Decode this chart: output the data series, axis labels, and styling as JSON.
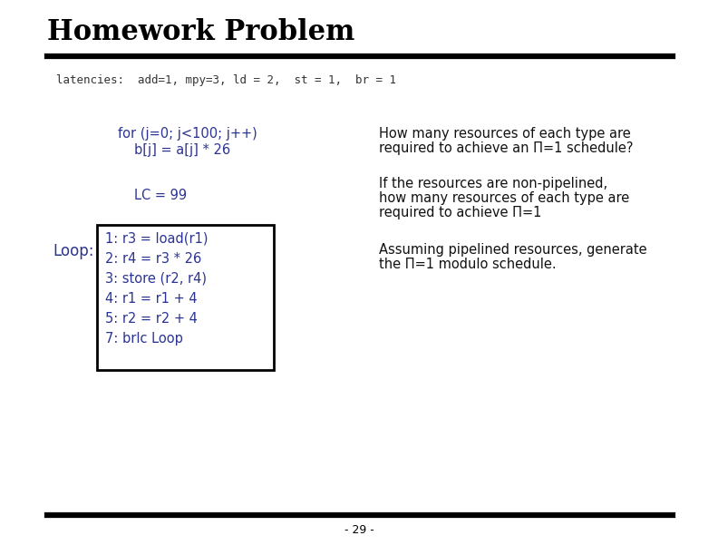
{
  "title": "Homework Problem",
  "latencies_line": "latencies:  add=1, mpy=3, ld = 2,  st = 1,  br = 1",
  "for_loop_line1": "for (j=0; j<100; j++)",
  "for_loop_line2": "b[j] = a[j] * 26",
  "lc_line": "LC = 99",
  "loop_label": "Loop:",
  "loop_code": [
    "1: r3 = load(r1)",
    "2: r4 = r3 * 26",
    "3: store (r2, r4)",
    "4: r1 = r1 + 4",
    "5: r2 = r2 + 4",
    "7: brlc Loop"
  ],
  "question1_line1": "How many resources of each type are",
  "question1_line2": "required to achieve an Π=1 schedule?",
  "question2_line1": "If the resources are non-pipelined,",
  "question2_line2": "how many resources of each type are",
  "question2_line3": "required to achieve Π=1",
  "question3_line1": "Assuming pipelined resources, generate",
  "question3_line2": "the Π=1 modulo schedule.",
  "page_number": "- 29 -",
  "title_color": "#000000",
  "blue_color": "#2b3490",
  "latencies_color": "#333333",
  "question_color": "#111111",
  "background_color": "#ffffff",
  "title_fontsize": 22,
  "latencies_fontsize": 9,
  "code_fontsize": 10.5,
  "question_fontsize": 10.5,
  "page_fontsize": 9,
  "loop_label_fontsize": 12
}
